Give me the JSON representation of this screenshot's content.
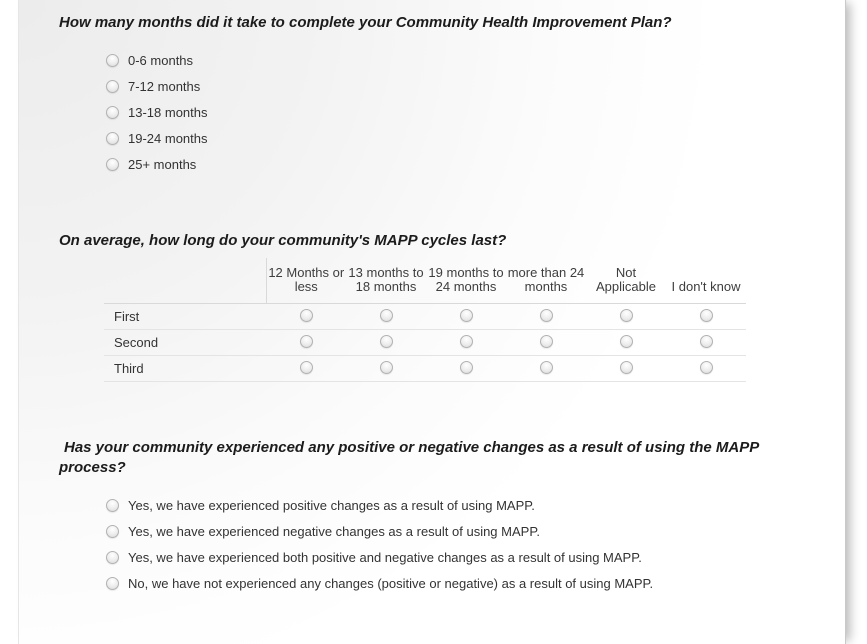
{
  "q1": {
    "title": "How many months did it take to complete your Community Health Improvement Plan?",
    "options": [
      "0-6 months",
      "7-12 months",
      "13-18 months",
      "19-24 months",
      "25+ months"
    ]
  },
  "q2": {
    "title": "On average, how long do your community's MAPP cycles last?",
    "columns": [
      "12 Months or less",
      "13 months to 18 months",
      "19 months to 24 months",
      "more than 24 months",
      "Not Applicable",
      "I don't know"
    ],
    "rows": [
      "First",
      "Second",
      "Third"
    ]
  },
  "q3": {
    "title": "Has your community experienced any positive or negative changes as a result of using the MAPP process?",
    "options": [
      "Yes, we have experienced positive changes as a result of using MAPP.",
      "Yes, we have experienced negative changes as a result of using MAPP.",
      "Yes, we have experienced both positive and negative changes as a result of using MAPP.",
      "No, we have not experienced any changes (positive or negative) as a result of using MAPP."
    ]
  },
  "colors": {
    "sheet_gradient_start": "#ececec",
    "sheet_gradient_end": "#ffffff",
    "question_text": "#1c1c1c",
    "option_text": "#333333",
    "table_border": "#d9d9d9"
  }
}
